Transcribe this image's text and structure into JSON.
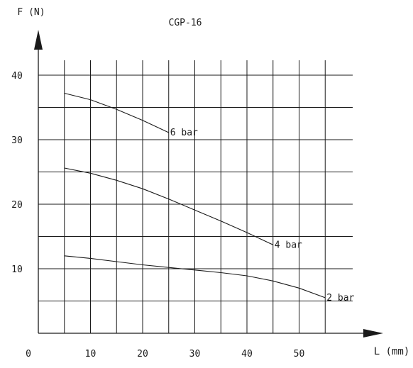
{
  "chart_data": {
    "type": "line",
    "title": "CGP-16",
    "xlabel": "L (mm)",
    "ylabel": "F (N)",
    "xlim": [
      0,
      60
    ],
    "ylim": [
      0,
      40
    ],
    "x_ticks": [
      "0",
      "10",
      "20",
      "30",
      "40",
      "50"
    ],
    "y_ticks": [
      "10",
      "20",
      "30",
      "40"
    ],
    "grid": true,
    "series": [
      {
        "name": "6 bar",
        "x": [
          5,
          10,
          15,
          20,
          25
        ],
        "y": [
          37.2,
          36.2,
          34.7,
          33.0,
          31.1
        ]
      },
      {
        "name": "4 bar",
        "x": [
          5,
          10,
          15,
          20,
          25,
          30,
          35,
          40,
          45
        ],
        "y": [
          25.6,
          24.8,
          23.7,
          22.4,
          20.8,
          19.1,
          17.4,
          15.6,
          13.7
        ]
      },
      {
        "name": "2 bar",
        "x": [
          5,
          10,
          15,
          20,
          25,
          30,
          35,
          40,
          45,
          50,
          55
        ],
        "y": [
          12.0,
          11.6,
          11.1,
          10.6,
          10.2,
          9.8,
          9.4,
          8.9,
          8.1,
          7.0,
          5.5
        ]
      }
    ]
  }
}
